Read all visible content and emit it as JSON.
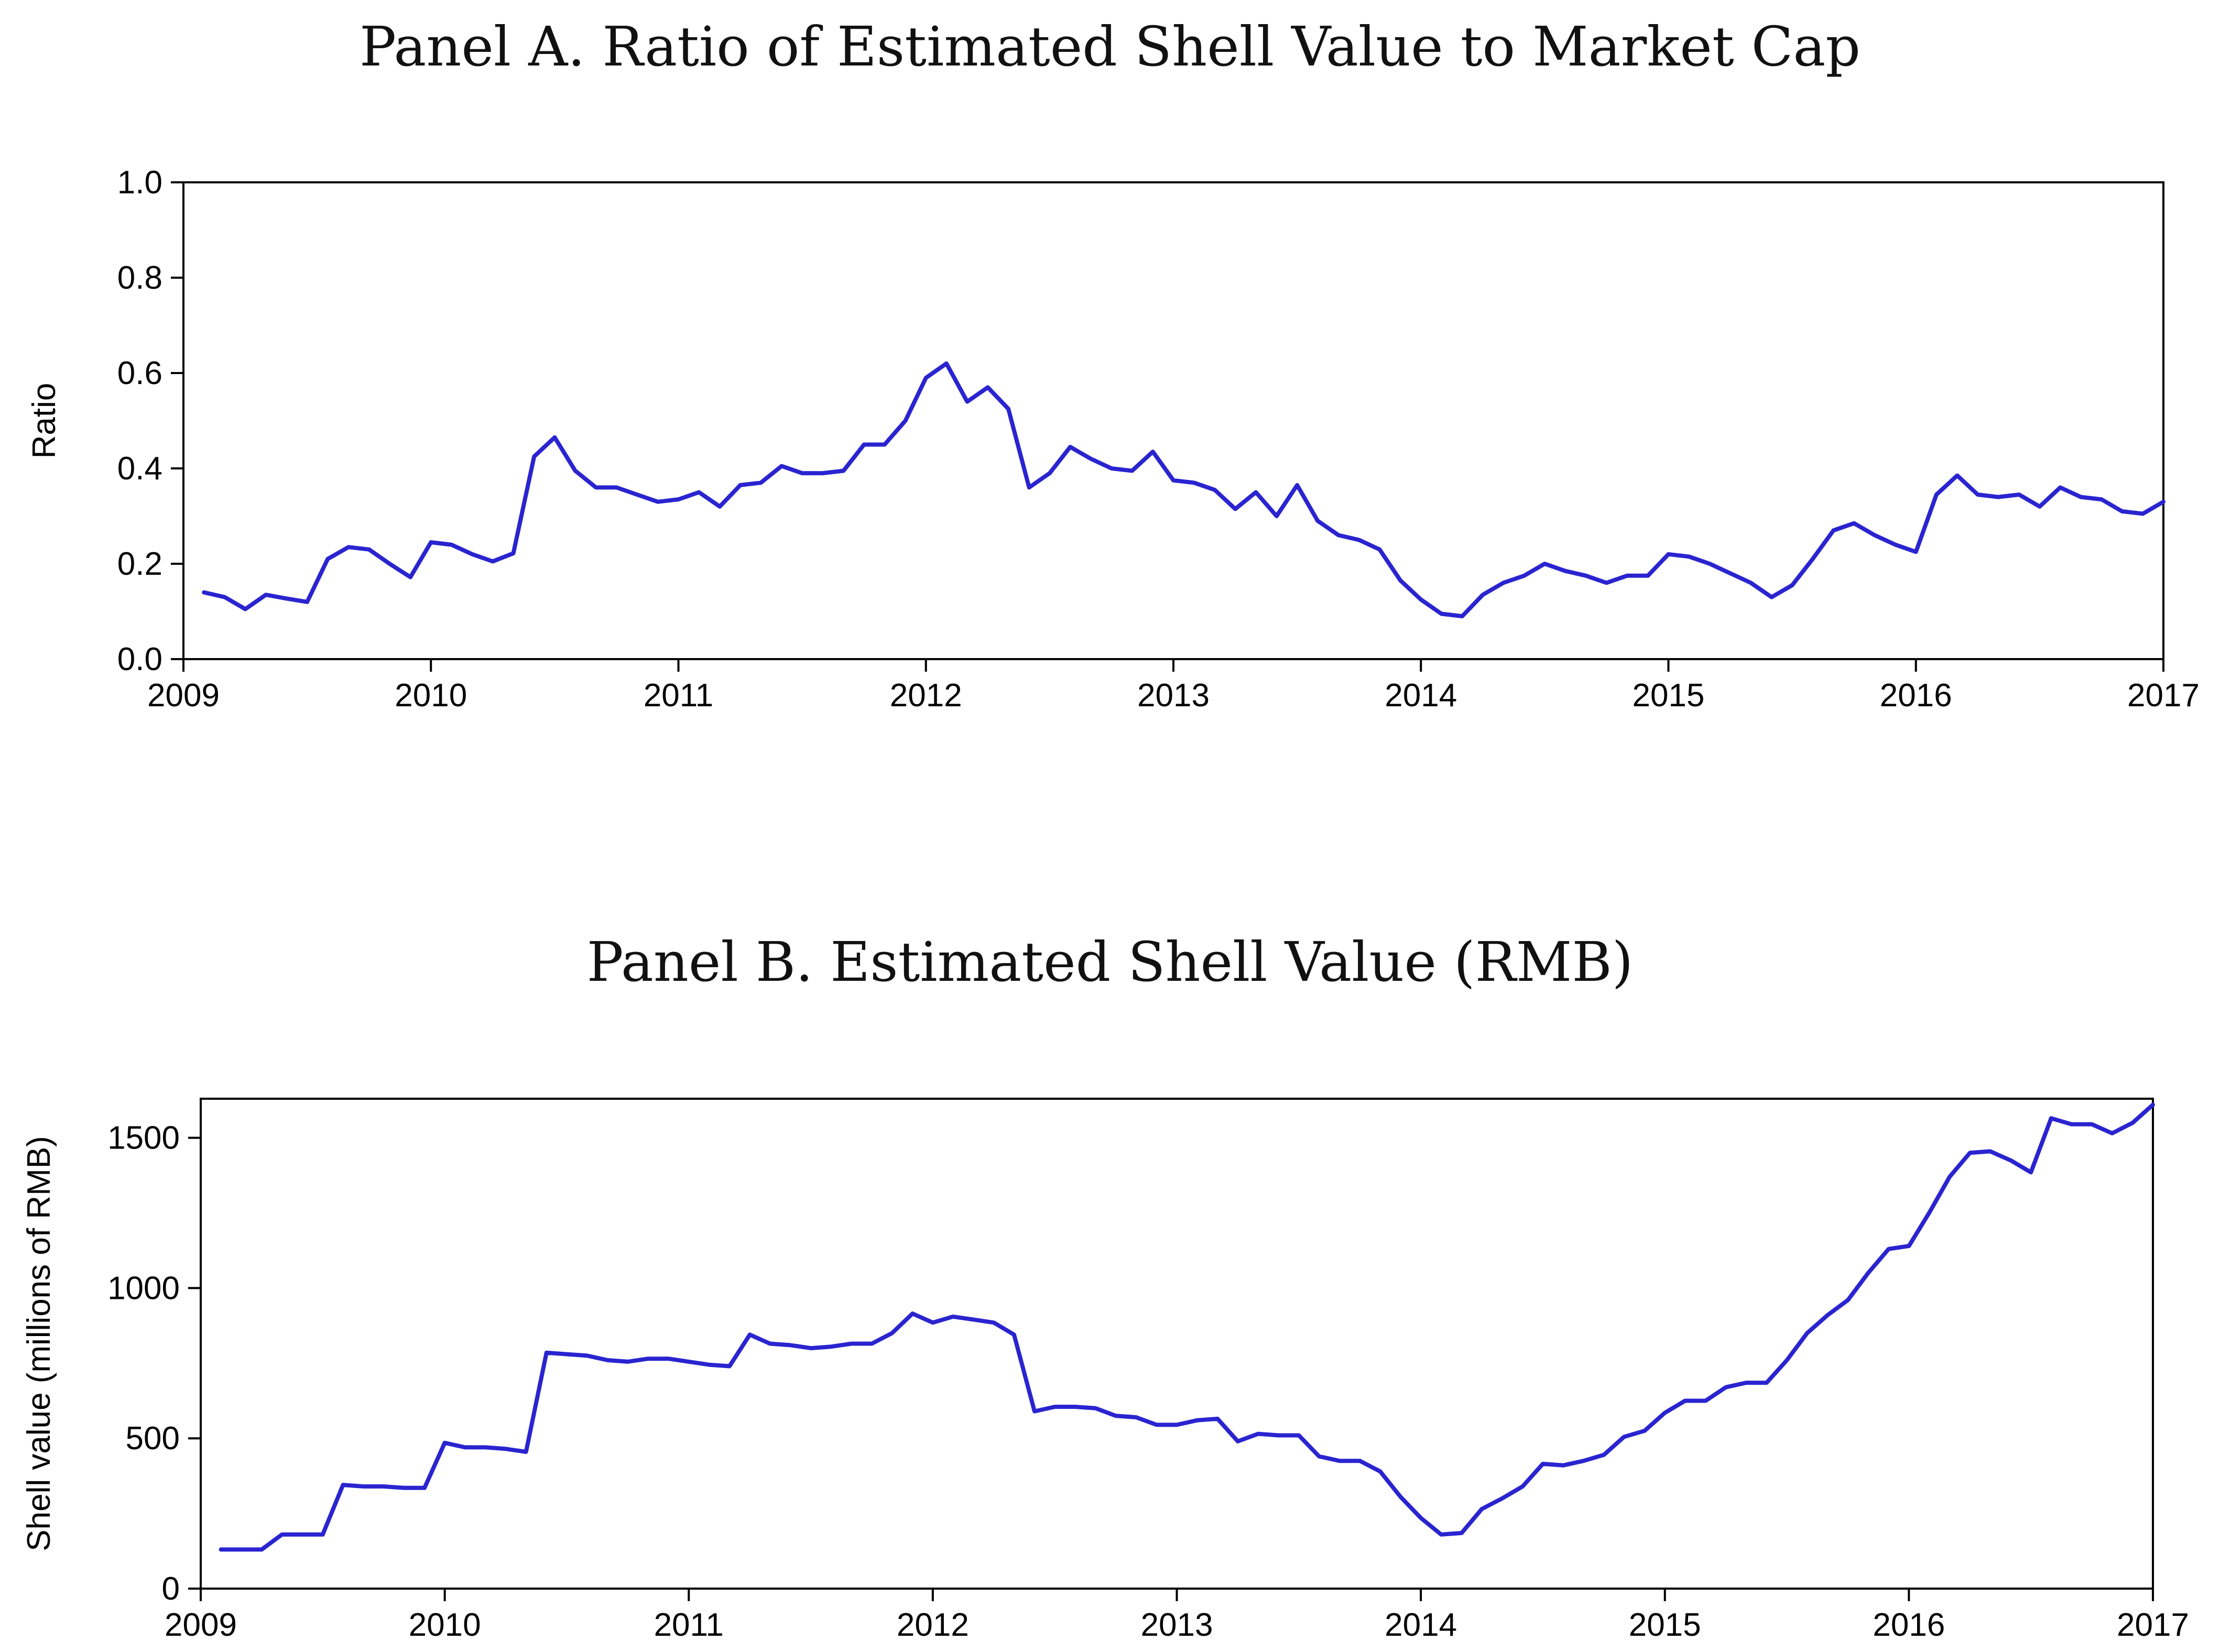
{
  "colors": {
    "series": "#2a24d0",
    "axis": "#000000"
  },
  "chart_data": [
    {
      "type": "line",
      "title": "Panel A. Ratio of Estimated Shell Value to Market Cap",
      "ylabel": "Ratio",
      "xlabel": "",
      "xlim": [
        2009,
        2017
      ],
      "ylim": [
        0.0,
        1.0
      ],
      "x_ticks": [
        "2009",
        "2010",
        "2011",
        "2012",
        "2013",
        "2014",
        "2015",
        "2016",
        "2017"
      ],
      "y_ticks": [
        "0.0",
        "0.2",
        "0.4",
        "0.6",
        "0.8",
        "1.0"
      ],
      "grid": false,
      "series": [
        {
          "x": [
            2009.083,
            2009.167,
            2009.25,
            2009.333,
            2009.417,
            2009.5,
            2009.583,
            2009.667,
            2009.75,
            2009.833,
            2009.917,
            2010.0,
            2010.083,
            2010.167,
            2010.25,
            2010.333,
            2010.417,
            2010.5,
            2010.583,
            2010.667,
            2010.75,
            2010.833,
            2010.917,
            2011.0,
            2011.083,
            2011.167,
            2011.25,
            2011.333,
            2011.417,
            2011.5,
            2011.583,
            2011.667,
            2011.75,
            2011.833,
            2011.917,
            2012.0,
            2012.083,
            2012.167,
            2012.25,
            2012.333,
            2012.417,
            2012.5,
            2012.583,
            2012.667,
            2012.75,
            2012.833,
            2012.917,
            2013.0,
            2013.083,
            2013.167,
            2013.25,
            2013.333,
            2013.417,
            2013.5,
            2013.583,
            2013.667,
            2013.75,
            2013.833,
            2013.917,
            2014.0,
            2014.083,
            2014.167,
            2014.25,
            2014.333,
            2014.417,
            2014.5,
            2014.583,
            2014.667,
            2014.75,
            2014.833,
            2014.917,
            2015.0,
            2015.083,
            2015.167,
            2015.25,
            2015.333,
            2015.417,
            2015.5,
            2015.583,
            2015.667,
            2015.75,
            2015.833,
            2015.917,
            2016.0,
            2016.083,
            2016.167,
            2016.25,
            2016.333,
            2016.417,
            2016.5,
            2016.583,
            2016.667,
            2016.75,
            2016.833,
            2016.917,
            2017.0
          ],
          "y": [
            0.14,
            0.13,
            0.105,
            0.135,
            0.127,
            0.12,
            0.21,
            0.235,
            0.23,
            0.2,
            0.172,
            0.245,
            0.24,
            0.22,
            0.205,
            0.222,
            0.425,
            0.465,
            0.395,
            0.36,
            0.36,
            0.345,
            0.33,
            0.335,
            0.35,
            0.32,
            0.365,
            0.37,
            0.405,
            0.39,
            0.39,
            0.395,
            0.45,
            0.45,
            0.5,
            0.59,
            0.62,
            0.54,
            0.57,
            0.525,
            0.36,
            0.39,
            0.445,
            0.42,
            0.4,
            0.395,
            0.435,
            0.375,
            0.37,
            0.355,
            0.315,
            0.35,
            0.3,
            0.365,
            0.29,
            0.26,
            0.25,
            0.23,
            0.165,
            0.125,
            0.095,
            0.09,
            0.135,
            0.16,
            0.175,
            0.2,
            0.185,
            0.175,
            0.16,
            0.175,
            0.175,
            0.22,
            0.215,
            0.2,
            0.18,
            0.16,
            0.13,
            0.155,
            0.21,
            0.27,
            0.285,
            0.26,
            0.24,
            0.225,
            0.345,
            0.385,
            0.345,
            0.34,
            0.345,
            0.32,
            0.36,
            0.34,
            0.335,
            0.31,
            0.305,
            0.33
          ]
        }
      ]
    },
    {
      "type": "line",
      "title": "Panel B. Estimated Shell Value (RMB)",
      "ylabel": "Shell value (millions of RMB)",
      "xlabel": "",
      "xlim": [
        2009,
        2017
      ],
      "ylim": [
        0,
        1630
      ],
      "x_ticks": [
        "2009",
        "2010",
        "2011",
        "2012",
        "2013",
        "2014",
        "2015",
        "2016",
        "2017"
      ],
      "y_ticks": [
        "0",
        "500",
        "1000",
        "1500"
      ],
      "grid": false,
      "series": [
        {
          "x": [
            2009.083,
            2009.167,
            2009.25,
            2009.333,
            2009.417,
            2009.5,
            2009.583,
            2009.667,
            2009.75,
            2009.833,
            2009.917,
            2010.0,
            2010.083,
            2010.167,
            2010.25,
            2010.333,
            2010.417,
            2010.5,
            2010.583,
            2010.667,
            2010.75,
            2010.833,
            2010.917,
            2011.0,
            2011.083,
            2011.167,
            2011.25,
            2011.333,
            2011.417,
            2011.5,
            2011.583,
            2011.667,
            2011.75,
            2011.833,
            2011.917,
            2012.0,
            2012.083,
            2012.167,
            2012.25,
            2012.333,
            2012.417,
            2012.5,
            2012.583,
            2012.667,
            2012.75,
            2012.833,
            2012.917,
            2013.0,
            2013.083,
            2013.167,
            2013.25,
            2013.333,
            2013.417,
            2013.5,
            2013.583,
            2013.667,
            2013.75,
            2013.833,
            2013.917,
            2014.0,
            2014.083,
            2014.167,
            2014.25,
            2014.333,
            2014.417,
            2014.5,
            2014.583,
            2014.667,
            2014.75,
            2014.833,
            2014.917,
            2015.0,
            2015.083,
            2015.167,
            2015.25,
            2015.333,
            2015.417,
            2015.5,
            2015.583,
            2015.667,
            2015.75,
            2015.833,
            2015.917,
            2016.0,
            2016.083,
            2016.167,
            2016.25,
            2016.333,
            2016.417,
            2016.5,
            2016.583,
            2016.667,
            2016.75,
            2016.833,
            2016.917,
            2017.0
          ],
          "y": [
            130,
            130,
            130,
            180,
            180,
            180,
            345,
            340,
            340,
            335,
            335,
            485,
            470,
            470,
            465,
            455,
            785,
            780,
            775,
            760,
            755,
            765,
            765,
            755,
            745,
            740,
            845,
            815,
            810,
            800,
            805,
            815,
            815,
            850,
            915,
            885,
            905,
            895,
            885,
            845,
            590,
            605,
            605,
            600,
            575,
            570,
            545,
            545,
            560,
            565,
            490,
            515,
            510,
            510,
            440,
            425,
            425,
            390,
            305,
            235,
            180,
            185,
            265,
            300,
            340,
            415,
            410,
            425,
            445,
            505,
            525,
            585,
            625,
            625,
            670,
            685,
            685,
            760,
            850,
            910,
            960,
            1050,
            1130,
            1140,
            1250,
            1370,
            1450,
            1455,
            1425,
            1385,
            1565,
            1545,
            1545,
            1515,
            1550,
            1610
          ]
        }
      ]
    }
  ]
}
